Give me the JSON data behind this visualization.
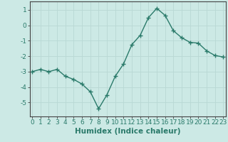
{
  "x": [
    0,
    1,
    2,
    3,
    4,
    5,
    6,
    7,
    8,
    9,
    10,
    11,
    12,
    13,
    14,
    15,
    16,
    17,
    18,
    19,
    20,
    21,
    22,
    23
  ],
  "y": [
    -3.0,
    -2.85,
    -3.0,
    -2.85,
    -3.3,
    -3.5,
    -3.8,
    -4.3,
    -5.4,
    -4.5,
    -3.3,
    -2.5,
    -1.25,
    -0.65,
    0.5,
    1.1,
    0.65,
    -0.35,
    -0.8,
    -1.1,
    -1.15,
    -1.65,
    -1.95,
    -2.05
  ],
  "line_color": "#2a7a6a",
  "marker": "+",
  "markersize": 4,
  "linewidth": 1.0,
  "markeredgewidth": 1.0,
  "background_color": "#cce9e5",
  "grid_color": "#b8d8d4",
  "xlabel": "Humidex (Indice chaleur)",
  "xlabel_fontsize": 7.5,
  "xlabel_bold": true,
  "yticks": [
    1,
    0,
    -1,
    -2,
    -3,
    -4,
    -5
  ],
  "xticks": [
    0,
    1,
    2,
    3,
    4,
    5,
    6,
    7,
    8,
    9,
    10,
    11,
    12,
    13,
    14,
    15,
    16,
    17,
    18,
    19,
    20,
    21,
    22,
    23
  ],
  "ylim": [
    -5.9,
    1.55
  ],
  "xlim": [
    -0.3,
    23.3
  ],
  "tick_fontsize": 6.5
}
